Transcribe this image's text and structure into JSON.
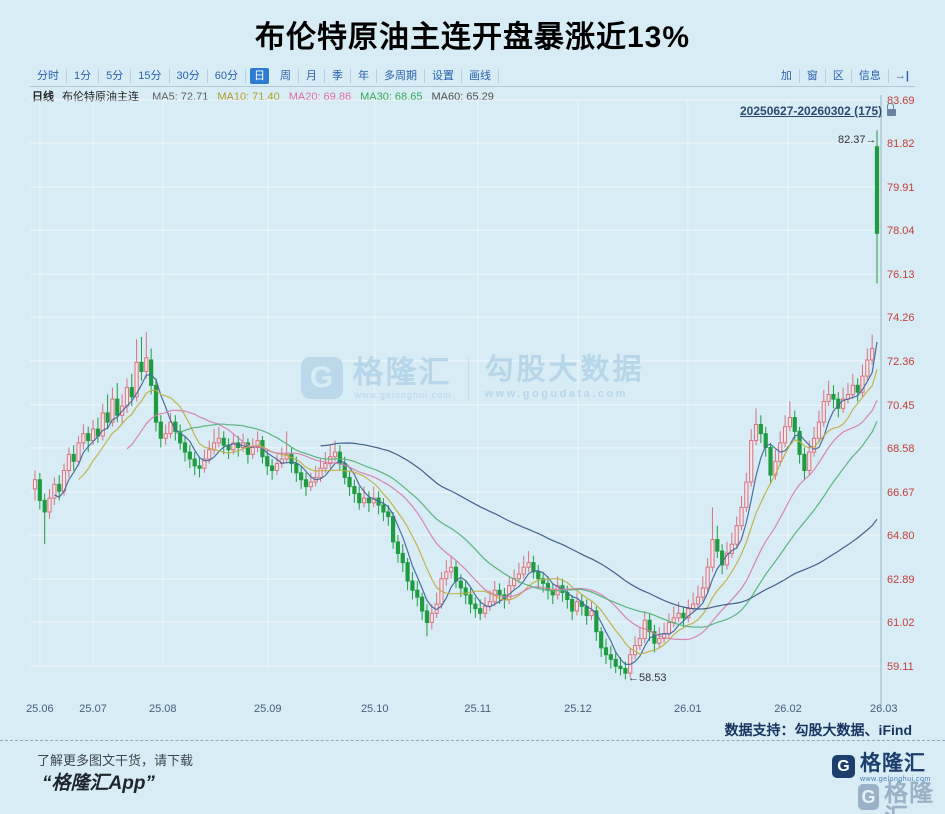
{
  "title": "布伦特原油主连开盘暴涨近13%",
  "toolbar": {
    "periods": [
      "分时",
      "1分",
      "5分",
      "15分",
      "30分",
      "60分",
      "日",
      "周",
      "月",
      "季",
      "年",
      "多周期",
      "设置",
      "画线"
    ],
    "selected": "日",
    "right_tools": [
      "加",
      "窗",
      "区",
      "信息"
    ],
    "exit_icon": "→|"
  },
  "legend": {
    "period_label": "日线",
    "instrument": "布伦特原油主连",
    "mas": [
      {
        "name": "MA5:",
        "value": "72.71",
        "color": "#5f5f5f"
      },
      {
        "name": "MA10:",
        "value": "71.40",
        "color": "#b39b2a"
      },
      {
        "name": "MA20:",
        "value": "69.86",
        "color": "#dd6fa3"
      },
      {
        "name": "MA30:",
        "value": "68.65",
        "color": "#33a855"
      },
      {
        "name": "MA60:",
        "value": "65.29",
        "color": "#4f4f4f"
      }
    ]
  },
  "range_label": "20250627-20260302 (175)",
  "annotations": {
    "high": "82.37→",
    "low": "←58.53"
  },
  "watermark": {
    "g": "G",
    "brand": "格隆汇",
    "brand_url": "www.gelonghui.com",
    "right": "勾股大数据",
    "right_url": "www.gogudata.com"
  },
  "footer": {
    "data_support": "数据支持：勾股大数据、iFind",
    "promo_line1": "了解更多图文干货，请下载",
    "promo_line2": "“格隆汇App”",
    "logo_g": "G",
    "logo_text": "格隆汇",
    "logo_url": "www.gelonghui.com"
  },
  "chart_data": {
    "type": "candlestick",
    "title": "布伦特原油主连 日线",
    "y_ticks": [
      83.69,
      81.82,
      79.91,
      78.04,
      76.13,
      74.26,
      72.36,
      70.45,
      68.58,
      66.67,
      64.8,
      62.89,
      61.02,
      59.11
    ],
    "ylim": [
      58.2,
      83.69
    ],
    "x_ticks": [
      {
        "label": "25.06",
        "i": 1.0
      },
      {
        "label": "25.07",
        "i": 12.0
      },
      {
        "label": "25.08",
        "i": 26.4
      },
      {
        "label": "25.09",
        "i": 48.1
      },
      {
        "label": "25.10",
        "i": 70.2
      },
      {
        "label": "25.11",
        "i": 91.5
      },
      {
        "label": "25.12",
        "i": 112.2
      },
      {
        "label": "26.01",
        "i": 134.9
      },
      {
        "label": "26.02",
        "i": 155.6
      },
      {
        "label": "26.03",
        "i": 175.4
      }
    ],
    "bar_count": 175,
    "high_annotation": {
      "price": 82.37,
      "index": 174
    },
    "low_annotation": {
      "price": 58.53,
      "index": 122
    },
    "up_color": "#d9727f",
    "up_fill": "#f6e6ea",
    "down_color": "#1f9c40",
    "axis_color": "#9ab2c4",
    "tick_color": "#c4403c",
    "xlabel_color": "#47617e",
    "ma_windows": [
      5,
      10,
      20,
      30,
      60
    ],
    "ma_colors": [
      "#46679c",
      "#c0b047",
      "#d87fae",
      "#55b377",
      "#3c5a83"
    ],
    "candles": [
      [
        66.8,
        67.6,
        66.3,
        67.2
      ],
      [
        67.2,
        67.5,
        65.9,
        66.3
      ],
      [
        66.3,
        66.6,
        64.4,
        65.8
      ],
      [
        65.8,
        66.8,
        65.5,
        66.4
      ],
      [
        66.4,
        67.3,
        66.1,
        67.0
      ],
      [
        67.0,
        67.4,
        66.3,
        66.7
      ],
      [
        66.7,
        67.9,
        66.5,
        67.6
      ],
      [
        67.6,
        68.6,
        67.3,
        68.3
      ],
      [
        68.3,
        68.7,
        67.6,
        68.0
      ],
      [
        68.0,
        69.1,
        67.8,
        68.8
      ],
      [
        68.8,
        69.6,
        68.5,
        69.2
      ],
      [
        69.2,
        69.5,
        68.4,
        68.9
      ],
      [
        68.9,
        69.8,
        68.7,
        69.4
      ],
      [
        69.4,
        69.9,
        68.8,
        69.1
      ],
      [
        69.1,
        70.5,
        68.9,
        70.1
      ],
      [
        70.1,
        70.9,
        69.4,
        69.7
      ],
      [
        69.7,
        71.2,
        69.5,
        70.7
      ],
      [
        70.7,
        71.4,
        69.7,
        70.0
      ],
      [
        70.0,
        70.9,
        69.6,
        70.4
      ],
      [
        70.4,
        71.6,
        70.1,
        71.2
      ],
      [
        71.2,
        71.8,
        70.4,
        70.8
      ],
      [
        70.8,
        73.3,
        70.6,
        72.3
      ],
      [
        72.3,
        73.4,
        71.5,
        71.9
      ],
      [
        71.9,
        73.6,
        71.6,
        72.5
      ],
      [
        72.4,
        72.9,
        70.9,
        71.3
      ],
      [
        71.3,
        71.6,
        69.3,
        69.7
      ],
      [
        69.7,
        70.0,
        68.6,
        69.0
      ],
      [
        69.0,
        69.6,
        68.7,
        69.2
      ],
      [
        69.2,
        70.1,
        69.0,
        69.7
      ],
      [
        69.7,
        70.0,
        68.9,
        69.3
      ],
      [
        69.3,
        69.6,
        68.5,
        68.8
      ],
      [
        68.8,
        69.1,
        68.0,
        68.4
      ],
      [
        68.4,
        68.7,
        67.7,
        68.1
      ],
      [
        68.1,
        68.4,
        67.4,
        67.8
      ],
      [
        67.8,
        68.2,
        67.3,
        67.7
      ],
      [
        67.7,
        68.5,
        67.5,
        68.1
      ],
      [
        68.1,
        68.9,
        67.9,
        68.5
      ],
      [
        68.5,
        69.4,
        68.3,
        68.8
      ],
      [
        68.8,
        69.5,
        68.6,
        69.0
      ],
      [
        69.0,
        69.3,
        68.3,
        68.7
      ],
      [
        68.7,
        69.0,
        68.1,
        68.5
      ],
      [
        68.5,
        69.2,
        68.3,
        68.8
      ],
      [
        68.8,
        69.1,
        68.2,
        68.6
      ],
      [
        68.6,
        69.2,
        68.4,
        68.8
      ],
      [
        68.8,
        69.0,
        67.9,
        68.3
      ],
      [
        68.3,
        69.0,
        68.1,
        68.6
      ],
      [
        68.6,
        69.3,
        68.4,
        68.9
      ],
      [
        68.9,
        69.1,
        67.9,
        68.2
      ],
      [
        68.2,
        68.5,
        67.4,
        67.8
      ],
      [
        67.8,
        68.1,
        67.2,
        67.6
      ],
      [
        67.6,
        68.3,
        67.4,
        67.9
      ],
      [
        67.9,
        68.6,
        67.7,
        68.1
      ],
      [
        68.1,
        69.3,
        67.9,
        68.3
      ],
      [
        68.3,
        68.6,
        67.5,
        67.9
      ],
      [
        67.9,
        68.2,
        67.1,
        67.5
      ],
      [
        67.5,
        67.8,
        66.8,
        67.2
      ],
      [
        67.2,
        67.5,
        66.5,
        66.9
      ],
      [
        66.9,
        67.5,
        66.7,
        67.1
      ],
      [
        67.1,
        67.8,
        66.9,
        67.3
      ],
      [
        67.3,
        68.1,
        67.1,
        67.7
      ],
      [
        67.7,
        68.4,
        67.5,
        67.9
      ],
      [
        67.9,
        68.7,
        67.7,
        68.2
      ],
      [
        68.2,
        68.9,
        68.0,
        68.4
      ],
      [
        68.4,
        68.7,
        67.6,
        67.9
      ],
      [
        67.9,
        68.2,
        67.0,
        67.3
      ],
      [
        67.3,
        67.6,
        66.5,
        66.9
      ],
      [
        66.9,
        67.2,
        66.2,
        66.6
      ],
      [
        66.6,
        66.9,
        65.9,
        66.2
      ],
      [
        66.2,
        66.9,
        66.0,
        66.4
      ],
      [
        66.4,
        66.7,
        65.8,
        66.2
      ],
      [
        66.2,
        66.9,
        66.0,
        66.4
      ],
      [
        66.4,
        66.7,
        65.7,
        66.1
      ],
      [
        66.1,
        66.4,
        65.4,
        65.8
      ],
      [
        65.8,
        66.1,
        65.2,
        65.6
      ],
      [
        65.6,
        65.8,
        64.2,
        64.5
      ],
      [
        64.5,
        64.8,
        63.6,
        64.0
      ],
      [
        64.0,
        64.4,
        63.2,
        63.6
      ],
      [
        63.6,
        63.8,
        62.4,
        62.8
      ],
      [
        62.8,
        63.2,
        62.0,
        62.4
      ],
      [
        62.4,
        62.8,
        61.7,
        62.1
      ],
      [
        62.1,
        62.3,
        61.1,
        61.5
      ],
      [
        61.5,
        61.8,
        60.4,
        61.0
      ],
      [
        61.0,
        61.8,
        60.7,
        61.4
      ],
      [
        61.4,
        62.3,
        61.2,
        61.8
      ],
      [
        61.8,
        63.2,
        61.6,
        62.9
      ],
      [
        62.9,
        63.7,
        62.6,
        63.2
      ],
      [
        63.2,
        63.9,
        62.9,
        63.4
      ],
      [
        63.4,
        63.7,
        62.5,
        62.8
      ],
      [
        62.8,
        63.1,
        62.1,
        62.5
      ],
      [
        62.5,
        62.8,
        61.8,
        62.2
      ],
      [
        62.2,
        62.5,
        61.4,
        61.8
      ],
      [
        61.8,
        62.1,
        61.2,
        61.6
      ],
      [
        61.6,
        62.0,
        61.1,
        61.4
      ],
      [
        61.4,
        62.1,
        61.2,
        61.7
      ],
      [
        61.7,
        62.4,
        61.5,
        61.9
      ],
      [
        61.9,
        62.8,
        61.7,
        62.4
      ],
      [
        62.4,
        62.7,
        61.8,
        62.2
      ],
      [
        62.2,
        62.5,
        61.6,
        62.0
      ],
      [
        62.0,
        63.0,
        61.8,
        62.6
      ],
      [
        62.6,
        63.3,
        62.4,
        62.9
      ],
      [
        62.9,
        63.6,
        62.7,
        63.1
      ],
      [
        63.1,
        63.9,
        62.9,
        63.4
      ],
      [
        63.4,
        64.1,
        63.2,
        63.6
      ],
      [
        63.6,
        63.9,
        62.9,
        63.2
      ],
      [
        63.2,
        63.5,
        62.5,
        62.9
      ],
      [
        62.9,
        63.2,
        62.3,
        62.7
      ],
      [
        62.7,
        63.0,
        62.0,
        62.4
      ],
      [
        62.4,
        62.7,
        61.8,
        62.2
      ],
      [
        62.2,
        63.0,
        62.0,
        62.6
      ],
      [
        62.6,
        62.9,
        61.9,
        62.3
      ],
      [
        62.3,
        62.6,
        61.6,
        62.0
      ],
      [
        62.0,
        62.2,
        61.1,
        61.5
      ],
      [
        61.5,
        62.3,
        61.3,
        61.9
      ],
      [
        61.9,
        62.2,
        61.3,
        61.7
      ],
      [
        61.7,
        62.0,
        60.9,
        61.3
      ],
      [
        61.3,
        61.9,
        61.1,
        61.5
      ],
      [
        61.5,
        61.7,
        60.2,
        60.6
      ],
      [
        60.6,
        60.8,
        59.5,
        59.9
      ],
      [
        59.9,
        60.3,
        59.2,
        59.6
      ],
      [
        59.6,
        60.0,
        59.0,
        59.4
      ],
      [
        59.4,
        59.7,
        58.8,
        59.1
      ],
      [
        59.1,
        59.5,
        58.7,
        59.0
      ],
      [
        59.0,
        59.3,
        58.53,
        58.8
      ],
      [
        58.8,
        59.9,
        58.6,
        59.6
      ],
      [
        59.6,
        60.4,
        59.4,
        60.0
      ],
      [
        60.0,
        60.8,
        59.8,
        60.3
      ],
      [
        60.3,
        61.5,
        60.1,
        61.1
      ],
      [
        61.1,
        61.4,
        60.2,
        60.6
      ],
      [
        60.6,
        60.9,
        59.7,
        60.1
      ],
      [
        60.1,
        60.8,
        59.9,
        60.3
      ],
      [
        60.3,
        61.0,
        60.1,
        60.5
      ],
      [
        60.5,
        61.4,
        60.3,
        61.0
      ],
      [
        61.0,
        61.7,
        60.8,
        61.2
      ],
      [
        61.2,
        61.9,
        61.0,
        61.4
      ],
      [
        61.4,
        61.7,
        60.8,
        61.2
      ],
      [
        61.2,
        62.0,
        61.0,
        61.6
      ],
      [
        61.6,
        62.3,
        61.4,
        61.8
      ],
      [
        61.8,
        62.6,
        61.6,
        62.1
      ],
      [
        62.1,
        63.0,
        61.9,
        62.5
      ],
      [
        62.5,
        63.8,
        62.3,
        63.4
      ],
      [
        63.4,
        66.0,
        63.2,
        64.6
      ],
      [
        64.6,
        65.2,
        63.8,
        64.1
      ],
      [
        64.1,
        64.4,
        63.1,
        63.5
      ],
      [
        63.5,
        64.5,
        63.3,
        64.0
      ],
      [
        64.0,
        64.9,
        63.8,
        64.4
      ],
      [
        64.4,
        65.6,
        64.2,
        65.2
      ],
      [
        65.2,
        66.5,
        65.0,
        66.0
      ],
      [
        66.0,
        67.5,
        65.8,
        67.1
      ],
      [
        67.1,
        69.4,
        66.9,
        68.9
      ],
      [
        68.9,
        70.3,
        68.7,
        69.6
      ],
      [
        69.6,
        70.0,
        68.8,
        69.2
      ],
      [
        69.2,
        69.5,
        68.2,
        68.6
      ],
      [
        68.6,
        68.8,
        67.0,
        67.4
      ],
      [
        67.4,
        68.5,
        67.2,
        68.0
      ],
      [
        68.0,
        69.3,
        67.8,
        68.8
      ],
      [
        68.8,
        70.0,
        68.6,
        69.5
      ],
      [
        69.5,
        70.6,
        69.3,
        69.9
      ],
      [
        69.9,
        70.2,
        68.9,
        69.3
      ],
      [
        69.3,
        69.5,
        67.9,
        68.3
      ],
      [
        68.3,
        68.6,
        67.2,
        67.6
      ],
      [
        67.6,
        68.9,
        67.4,
        68.4
      ],
      [
        68.4,
        69.5,
        68.2,
        69.0
      ],
      [
        69.0,
        70.2,
        68.8,
        69.7
      ],
      [
        69.7,
        71.1,
        69.5,
        70.6
      ],
      [
        70.6,
        71.5,
        70.4,
        70.9
      ],
      [
        70.9,
        71.3,
        70.3,
        70.7
      ],
      [
        70.7,
        71.0,
        69.9,
        70.3
      ],
      [
        70.3,
        71.2,
        70.1,
        70.7
      ],
      [
        70.7,
        71.4,
        70.5,
        70.9
      ],
      [
        70.9,
        71.8,
        70.7,
        71.3
      ],
      [
        71.3,
        71.6,
        70.6,
        71.0
      ],
      [
        71.0,
        72.2,
        70.8,
        71.7
      ],
      [
        71.7,
        72.9,
        71.5,
        72.4
      ],
      [
        72.4,
        73.5,
        72.2,
        72.9
      ],
      [
        81.66,
        82.37,
        75.72,
        77.9
      ]
    ]
  }
}
